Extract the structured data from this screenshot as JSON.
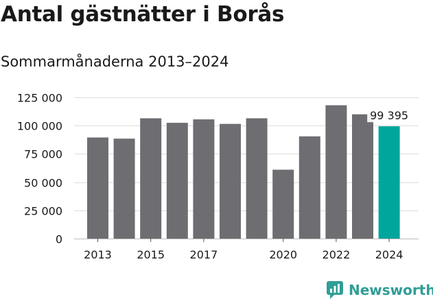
{
  "title": "Antal gästnätter i Borås",
  "subtitle": "Sommarmånaderna 2013–2024",
  "brand": {
    "name": "Newsworthy"
  },
  "colors": {
    "bar": "#6e6d72",
    "highlight": "#00a59b",
    "grid": "#dddddd",
    "brand": "#2f9e96"
  },
  "chart_data": {
    "type": "bar",
    "categories": [
      "2013",
      "2014",
      "2015",
      "2016",
      "2017",
      "2018",
      "2019",
      "2020",
      "2021",
      "2022",
      "2023",
      "2024"
    ],
    "values": [
      89500,
      88500,
      106500,
      102500,
      105500,
      101500,
      106500,
      61000,
      90500,
      118000,
      110000,
      99395
    ],
    "x_tick_labels": [
      "2013",
      "",
      "2015",
      "",
      "2017",
      "",
      "",
      "2020",
      "",
      "2022",
      "",
      "2024"
    ],
    "highlight_index": 11,
    "annotation": {
      "index": 11,
      "text": "99 395"
    },
    "y_ticks": [
      {
        "value": 0,
        "label": "0"
      },
      {
        "value": 25000,
        "label": "25 000"
      },
      {
        "value": 50000,
        "label": "50 000"
      },
      {
        "value": 75000,
        "label": "75 000"
      },
      {
        "value": 100000,
        "label": "100 000"
      },
      {
        "value": 125000,
        "label": "125 000"
      }
    ],
    "ylim": [
      0,
      125000
    ],
    "grid": true,
    "xlabel": "",
    "ylabel": ""
  }
}
